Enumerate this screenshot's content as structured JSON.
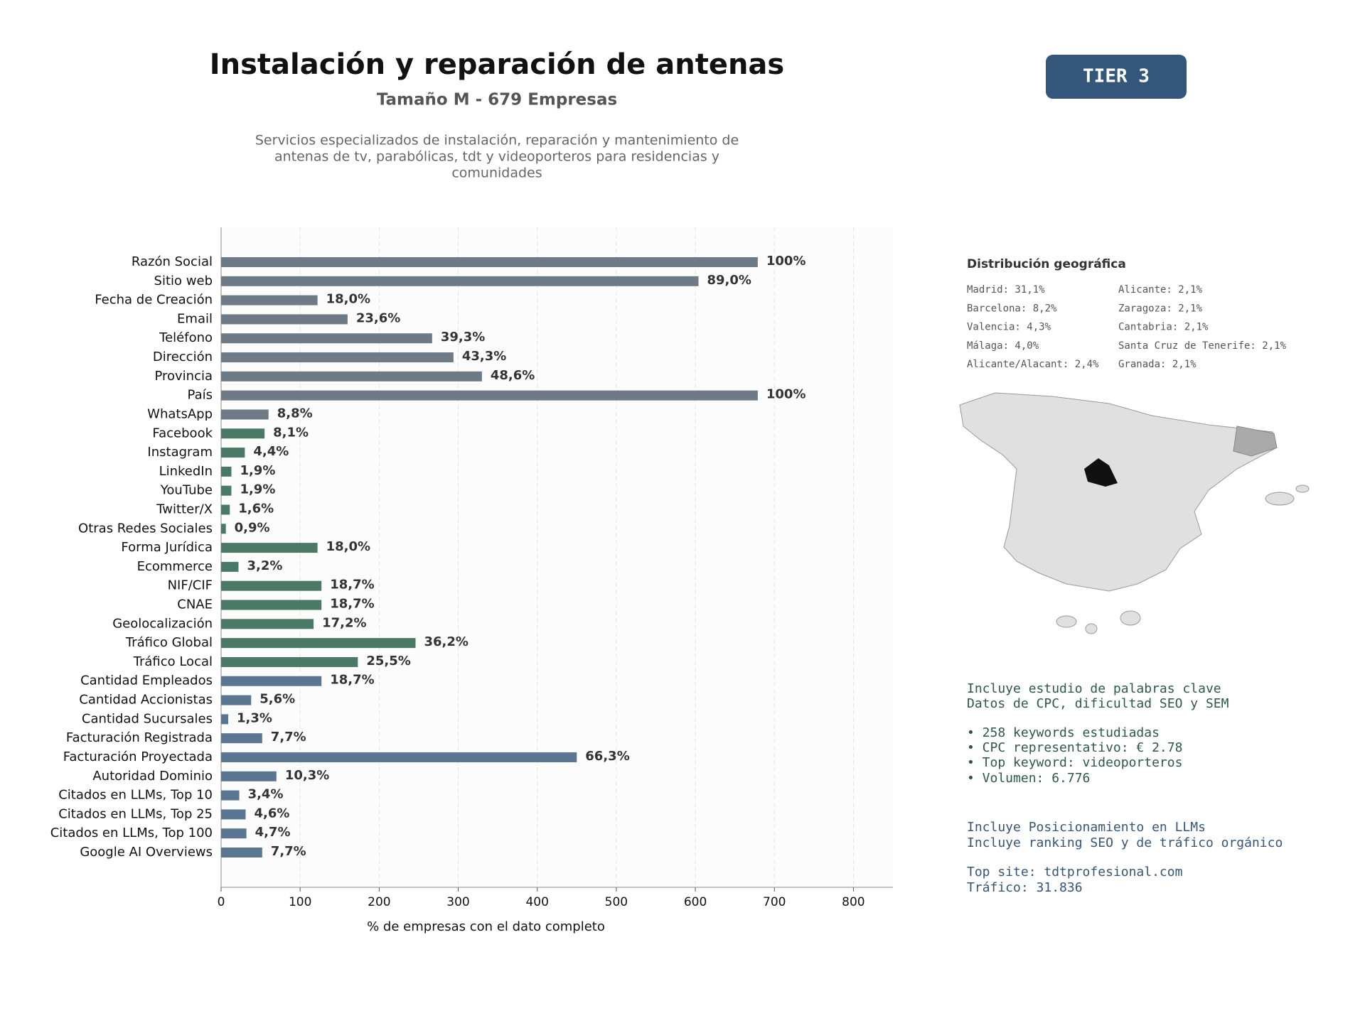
{
  "chart_data": {
    "type": "barh",
    "title": "Instalación y reparación de antenas",
    "subtitle": "Tamaño M - 679 Empresas",
    "description": [
      "Servicios especializados de instalación, reparación y mantenimiento de",
      "antenas de tv, parabólicas, tdt y videoporteros para residencias y",
      "comunidades"
    ],
    "x_label": "% de empresas con el dato completo",
    "categories": [
      "Razón Social",
      "Sitio web",
      "Fecha de Creación",
      "Email",
      "Teléfono",
      "Dirección",
      "Provincia",
      "País",
      "WhatsApp",
      "Facebook",
      "Instagram",
      "LinkedIn",
      "YouTube",
      "Twitter/X",
      "Otras Redes Sociales",
      "Forma Jurídica",
      "Ecommerce",
      "NIF/CIF",
      "CNAE",
      "Geolocalización",
      "Tráfico Global",
      "Tráfico Local",
      "Cantidad Empleados",
      "Cantidad Accionistas",
      "Cantidad Sucursales",
      "Facturación Registrada",
      "Facturación Proyectada",
      "Autoridad Dominio",
      "Citados en LLMs, Top 10",
      "Citados en LLMs, Top 25",
      "Citados en LLMs, Top 100",
      "Google AI Overviews"
    ],
    "values": [
      679,
      604,
      122,
      160,
      267,
      294,
      330,
      679,
      60,
      55,
      30,
      13,
      13,
      11,
      6,
      122,
      22,
      127,
      127,
      117,
      246,
      173,
      127,
      38,
      9,
      52,
      450,
      70,
      23,
      31,
      32,
      52
    ],
    "value_labels": [
      "100%",
      "89,0%",
      "18,0%",
      "23,6%",
      "39,3%",
      "43,3%",
      "48,6%",
      "100%",
      "8,8%",
      "8,1%",
      "4,4%",
      "1,9%",
      "1,9%",
      "1,6%",
      "0,9%",
      "18,0%",
      "3,2%",
      "18,7%",
      "18,7%",
      "17,2%",
      "36,2%",
      "25,5%",
      "18,7%",
      "5,6%",
      "1,3%",
      "7,7%",
      "66,3%",
      "10,3%",
      "3,4%",
      "4,6%",
      "4,7%",
      "7,7%"
    ],
    "colors": [
      "#6e7b86",
      "#6e7b86",
      "#6e7b86",
      "#6e7b86",
      "#6e7b86",
      "#6e7b86",
      "#6e7b86",
      "#6e7b86",
      "#6e7b86",
      "#4a7a66",
      "#4a7a66",
      "#4a7a66",
      "#4a7a66",
      "#4a7a66",
      "#4a7a66",
      "#4a7a66",
      "#4a7a66",
      "#4a7a66",
      "#4a7a66",
      "#4a7a66",
      "#4a7a66",
      "#4a7a66",
      "#5a7692",
      "#5a7692",
      "#5a7692",
      "#5a7692",
      "#5a7692",
      "#5a7692",
      "#5a7692",
      "#5a7692",
      "#5a7692",
      "#5a7692"
    ],
    "xlim": [
      0,
      850
    ],
    "xticks": [
      0,
      100,
      200,
      300,
      400,
      500,
      600,
      700,
      800
    ],
    "grid": true
  },
  "badge": "TIER 3",
  "geo": {
    "title": "Distribución geográfica",
    "entries": [
      "Madrid: 31,1%",
      "Barcelona: 8,2%",
      "Valencia: 4,3%",
      "Málaga: 4,0%",
      "Alicante/Alacant: 2,4%",
      "Alicante: 2,1%",
      "Zaragoza: 2,1%",
      "Cantabria: 2,1%",
      "Santa Cruz de Tenerife: 2,1%",
      "Granada: 2,1%"
    ]
  },
  "seo": [
    "Incluye estudio de palabras clave",
    "Datos de CPC, dificultad SEO y SEM",
    "• 258 keywords estudiadas",
    "• CPC representativo: € 2.78",
    "• Top keyword: videoporteros",
    "• Volumen: 6.776"
  ],
  "llm": [
    "Incluye Posicionamiento en LLMs",
    "Incluye ranking SEO y de tráfico orgánico",
    "Top site: tdtprofesional.com",
    "Tráfico: 31.836"
  ]
}
